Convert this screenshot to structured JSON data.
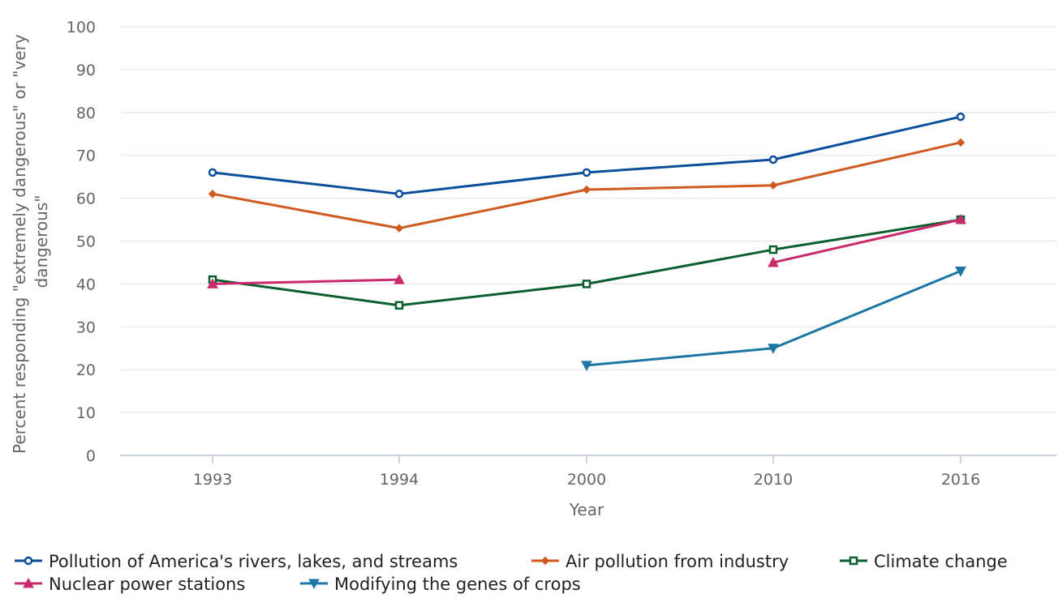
{
  "chart_data": {
    "type": "line",
    "title": "",
    "xlabel": "Year",
    "ylabel_lines": [
      "Percent responding \"extremely dangerous\" or \"very",
      "dangerous\""
    ],
    "categories": [
      "1993",
      "1994",
      "2000",
      "2010",
      "2016"
    ],
    "ylim": [
      0,
      100
    ],
    "yticks": [
      0,
      10,
      20,
      30,
      40,
      50,
      60,
      70,
      80,
      90,
      100
    ],
    "grid": "horizontal",
    "legend_position": "bottom",
    "series": [
      {
        "name": "Pollution of America's rivers, lakes, and streams",
        "color": "#0b4f9c",
        "marker": "circle",
        "values": [
          66,
          61,
          66,
          69,
          79
        ]
      },
      {
        "name": "Air pollution from industry",
        "color": "#d05a1f",
        "marker": "diamond",
        "values": [
          61,
          53,
          62,
          63,
          73
        ]
      },
      {
        "name": "Climate change",
        "color": "#0b5e2e",
        "marker": "square",
        "values": [
          41,
          35,
          40,
          48,
          55
        ]
      },
      {
        "name": "Nuclear power stations",
        "color": "#c92a6b",
        "marker": "triangle-up",
        "values": [
          40,
          41,
          null,
          45,
          55
        ]
      },
      {
        "name": "Modifying the genes of crops",
        "color": "#1c76a3",
        "marker": "triangle-down",
        "values": [
          null,
          null,
          21,
          25,
          43
        ]
      }
    ]
  }
}
